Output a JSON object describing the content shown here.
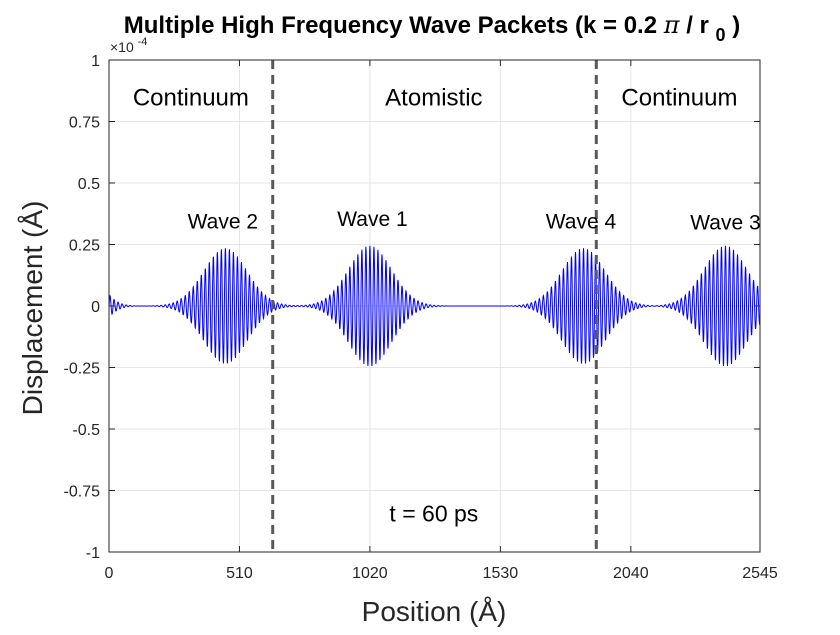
{
  "chart_data": {
    "type": "line",
    "title_main": "Multiple High Frequency Wave Packets (k = 0.2",
    "title_pi": "π",
    "title_slash": " / r",
    "title_sub": "0",
    "title_end": ")",
    "xlabel": "Position (Å)",
    "ylabel": "Displacement (Å)",
    "xlim": [
      0,
      2545
    ],
    "ylim": [
      -1,
      1
    ],
    "y_scale_label": "×10",
    "y_scale_exponent": "-4",
    "xticks": [
      0,
      510,
      1020,
      1530,
      2040,
      2545
    ],
    "xtick_labels": [
      "0",
      "510",
      "1020",
      "1530",
      "2040",
      "2545"
    ],
    "yticks": [
      -1,
      -0.75,
      -0.5,
      -0.25,
      0,
      0.25,
      0.5,
      0.75,
      1
    ],
    "ytick_labels": [
      "-1",
      "-0.75",
      "-0.5",
      "-0.25",
      "0",
      "0.25",
      "0.5",
      "0.75",
      "1"
    ],
    "grid": true,
    "series": [
      {
        "name": "displacement",
        "color": "#0000ff",
        "packets": [
          {
            "label": "Wave 1",
            "center": 1020,
            "amplitude": 0.245,
            "width": 85,
            "wavelength": 15.7
          },
          {
            "label": "Wave 2",
            "center": 455,
            "amplitude": 0.235,
            "width": 85,
            "wavelength": 15.7
          },
          {
            "label": "Wave 3",
            "center": 2410,
            "amplitude": 0.245,
            "width": 85,
            "wavelength": 15.7
          },
          {
            "label": "Wave 4",
            "center": 1855,
            "amplitude": 0.235,
            "width": 85,
            "wavelength": 15.7
          },
          {
            "label": "",
            "center": -90,
            "amplitude": 0.14,
            "width": 60,
            "wavelength": 15.7
          }
        ]
      }
    ],
    "boundaries": [
      640,
      1905
    ],
    "boundary_color": "#595959",
    "regions": [
      {
        "text": "Continuum",
        "x": 320
      },
      {
        "text": "Atomistic",
        "x": 1270
      },
      {
        "text": "Continuum",
        "x": 2230
      }
    ],
    "wave_labels": [
      {
        "text": "Wave 2",
        "x": 445,
        "y": 0.315
      },
      {
        "text": "Wave 1",
        "x": 1030,
        "y": 0.325
      },
      {
        "text": "Wave 4",
        "x": 1845,
        "y": 0.315
      },
      {
        "text": "Wave 3",
        "x": 2410,
        "y": 0.31
      }
    ],
    "annotation": {
      "text": "t = 60 ps",
      "x": 1270,
      "y": -0.875
    }
  }
}
